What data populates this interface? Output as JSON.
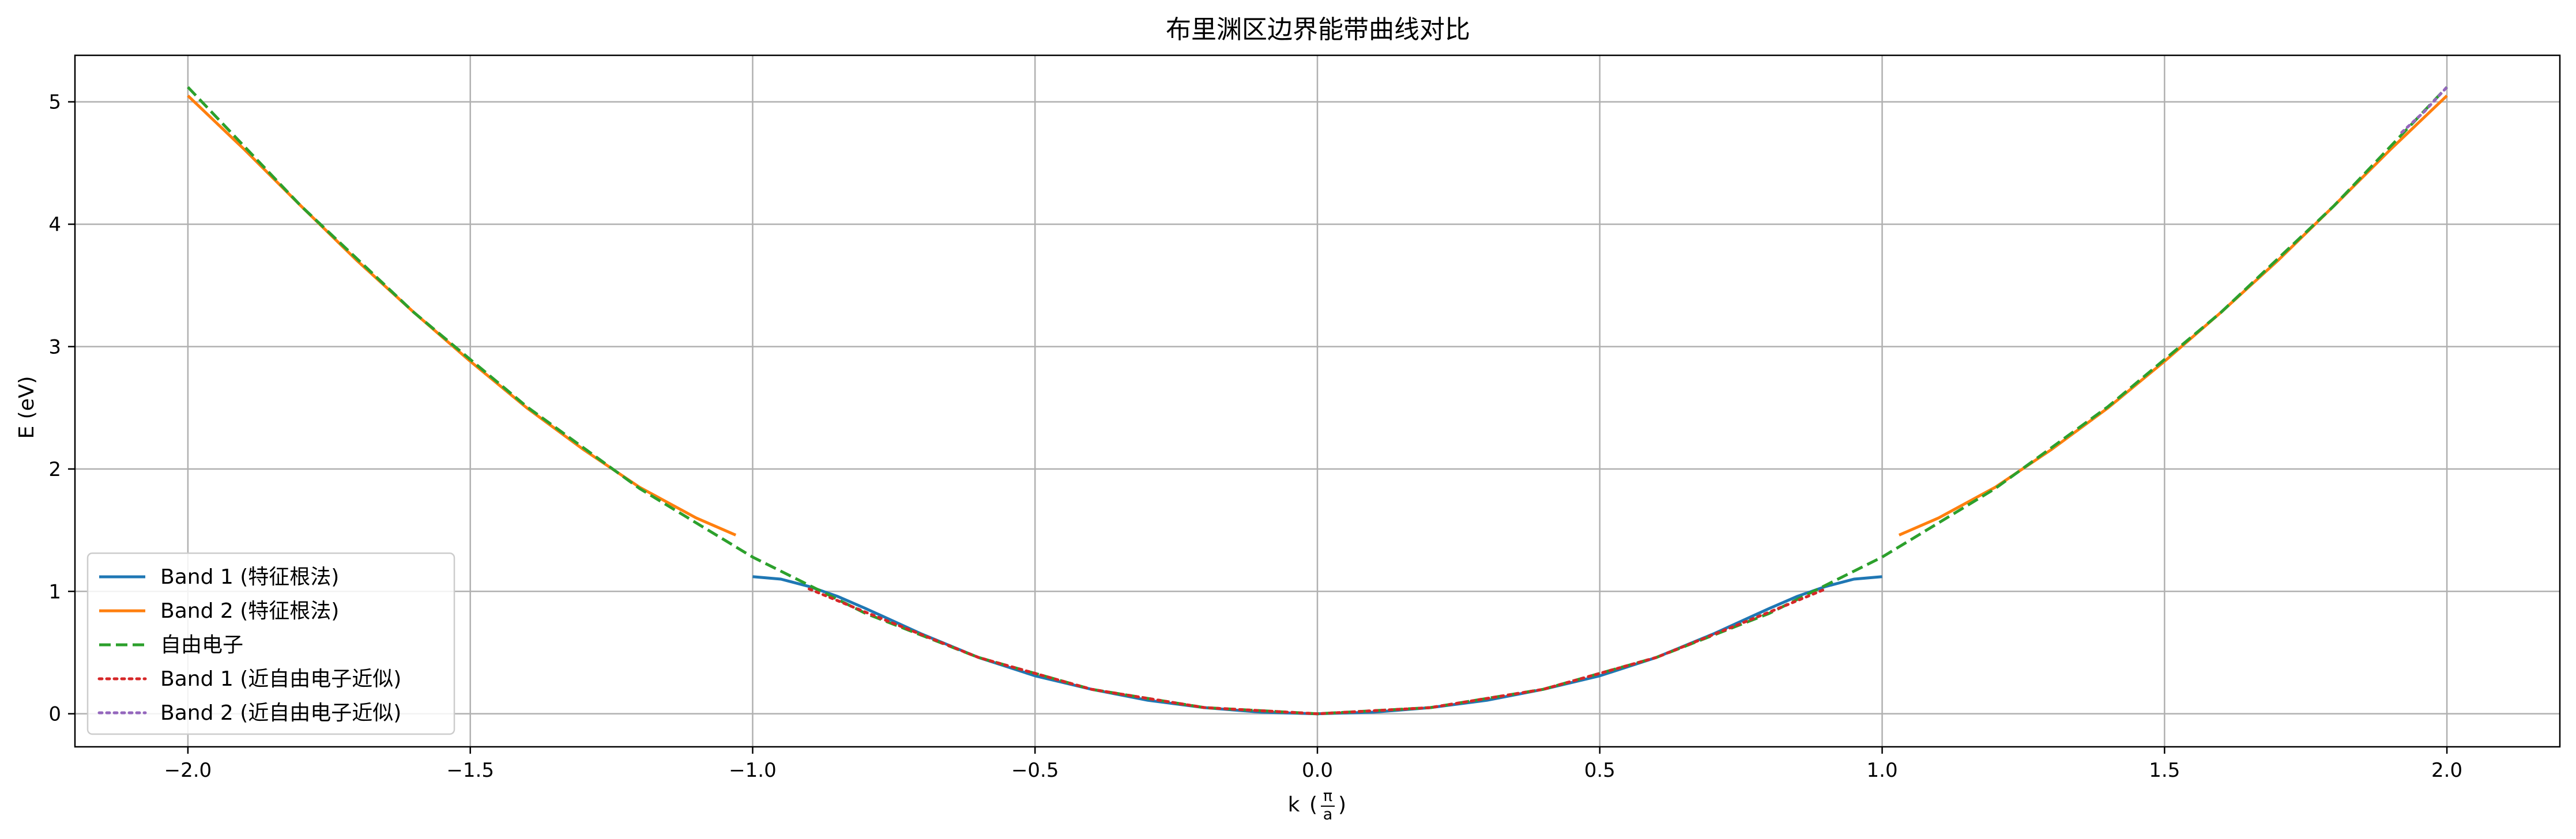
{
  "chart_data": {
    "type": "line",
    "title": "布里渊区边界能带曲线对比",
    "xlabel": "k",
    "xlabel_unit_numerator": "π",
    "xlabel_unit_denominator": "a",
    "ylabel": "E (eV)",
    "xlim": [
      -2.2,
      2.2
    ],
    "ylim": [
      -0.27,
      5.38
    ],
    "xticks": [
      -2.0,
      -1.5,
      -1.0,
      -0.5,
      0.0,
      0.5,
      1.0,
      1.5,
      2.0
    ],
    "xtick_labels": [
      "−2.0",
      "−1.5",
      "−1.0",
      "−0.5",
      "0.0",
      "0.5",
      "1.0",
      "1.5",
      "2.0"
    ],
    "yticks": [
      0,
      1,
      2,
      3,
      4,
      5
    ],
    "ytick_labels": [
      "0",
      "1",
      "2",
      "3",
      "4",
      "5"
    ],
    "grid": true,
    "legend_position": "lower-left",
    "series": [
      {
        "name": "Band 1 (特征根法)",
        "color": "#1f77b4",
        "style": "solid",
        "segments": [
          {
            "x": [
              -1.0,
              -0.95,
              -0.9,
              -0.85,
              -0.8,
              -0.7,
              -0.6,
              -0.5,
              -0.4,
              -0.3,
              -0.2,
              -0.1,
              0.0,
              0.1,
              0.2,
              0.3,
              0.4,
              0.5,
              0.6,
              0.7,
              0.8,
              0.85,
              0.9,
              0.95,
              1.0
            ],
            "y": [
              1.12,
              1.1,
              1.04,
              0.96,
              0.86,
              0.65,
              0.46,
              0.31,
              0.2,
              0.11,
              0.05,
              0.013,
              0.0,
              0.013,
              0.05,
              0.11,
              0.2,
              0.31,
              0.46,
              0.65,
              0.86,
              0.96,
              1.04,
              1.1,
              1.12
            ]
          }
        ]
      },
      {
        "name": "Band 2 (特征根法)",
        "color": "#ff7f0e",
        "style": "solid",
        "segments": [
          {
            "x": [
              -2.0,
              -1.9,
              -1.8,
              -1.7,
              -1.6,
              -1.5,
              -1.4,
              -1.3,
              -1.2,
              -1.1,
              -1.03
            ],
            "y": [
              5.05,
              4.61,
              4.15,
              3.7,
              3.28,
              2.88,
              2.5,
              2.16,
              1.85,
              1.6,
              1.46
            ]
          },
          {
            "x": [
              1.03,
              1.1,
              1.2,
              1.3,
              1.4,
              1.5,
              1.6,
              1.7,
              1.8,
              1.9,
              2.0
            ],
            "y": [
              1.46,
              1.6,
              1.85,
              2.16,
              2.5,
              2.88,
              3.28,
              3.7,
              4.15,
              4.61,
              5.05
            ]
          }
        ]
      },
      {
        "name": "自由电子",
        "color": "#2ca02c",
        "style": "dashed",
        "segments": [
          {
            "x": [
              -2.0,
              -1.8,
              -1.6,
              -1.4,
              -1.2,
              -1.0,
              -0.8,
              -0.6,
              -0.4,
              -0.2,
              0.0,
              0.2,
              0.4,
              0.6,
              0.8,
              1.0,
              1.2,
              1.4,
              1.6,
              1.8,
              2.0
            ],
            "y": [
              5.12,
              4.15,
              3.28,
              2.51,
              1.84,
              1.28,
              0.82,
              0.46,
              0.2,
              0.05,
              0.0,
              0.05,
              0.2,
              0.46,
              0.82,
              1.28,
              1.84,
              2.51,
              3.28,
              4.15,
              5.12
            ]
          }
        ]
      },
      {
        "name": "Band 1 (近自由电子近似)",
        "color": "#d62728",
        "style": "dotted",
        "segments": [
          {
            "x": [
              -0.9,
              -0.8,
              -0.6,
              -0.4,
              -0.2,
              0.0,
              0.2,
              0.4,
              0.6,
              0.8,
              0.9
            ],
            "y": [
              1.02,
              0.83,
              0.46,
              0.2,
              0.05,
              0.0,
              0.05,
              0.2,
              0.46,
              0.83,
              1.02
            ]
          }
        ]
      },
      {
        "name": "Band 2 (近自由电子近似)",
        "color": "#9467bd",
        "style": "dotted",
        "segments": [
          {
            "x": [
              1.92,
              1.96,
              2.0
            ],
            "y": [
              4.75,
              4.92,
              5.12
            ]
          }
        ]
      }
    ]
  }
}
